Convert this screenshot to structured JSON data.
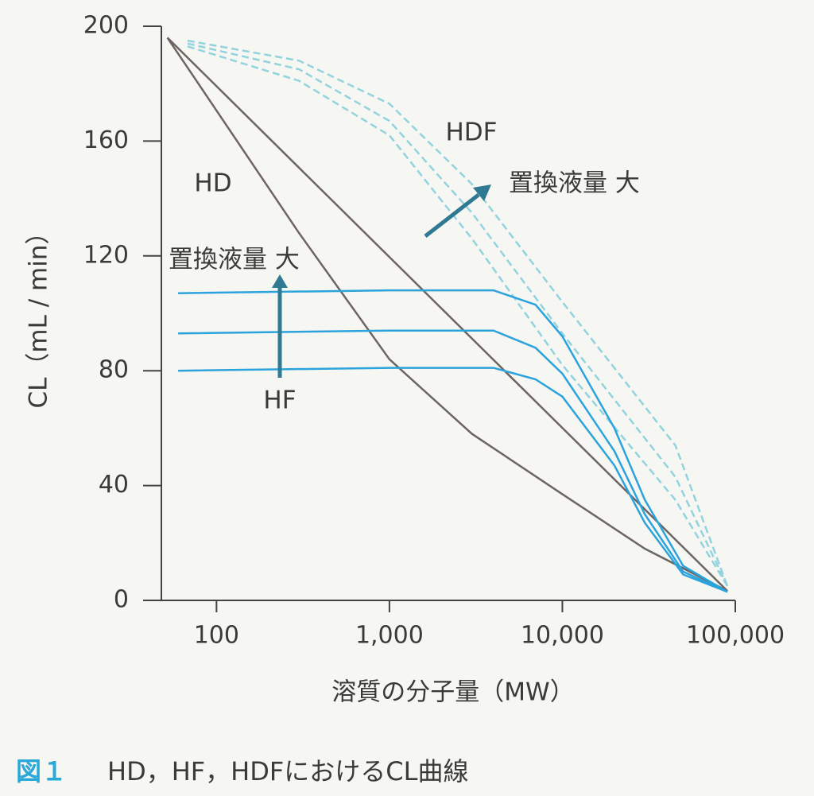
{
  "chart_data": {
    "type": "line",
    "x_scale": "log",
    "xlabel": "溶質の分子量（MW）",
    "ylabel": "CL（mL / min）",
    "xlim": [
      48,
      100000
    ],
    "ylim": [
      0,
      200
    ],
    "xticks": [
      100,
      {
        "value": 1000,
        "label": "1,000"
      },
      {
        "value": 10000,
        "label": "10,000"
      },
      {
        "value": 100000,
        "label": "100,000"
      }
    ],
    "yticks": [
      0,
      40,
      80,
      120,
      160,
      200
    ],
    "annotations": [
      "HD",
      "HDF",
      "置換液量 大",
      "置換液量 大",
      "HF"
    ],
    "caption": {
      "label": "図１",
      "text": "HD，HF，HDFにおけるCL曲線"
    },
    "series": [
      {
        "color": "#6d6562",
        "dash": false,
        "x": [
          52,
          90000
        ],
        "values": [
          196,
          3.3
        ]
      },
      {
        "color": "#6d6562",
        "dash": false,
        "x": [
          52,
          300,
          1000,
          3000,
          10000,
          30000,
          90000
        ],
        "values": [
          196,
          128,
          84,
          58,
          37,
          18,
          3.3
        ]
      },
      {
        "color": "#93d3dd",
        "dash": true,
        "x": [
          68,
          300,
          1000,
          3000,
          10000,
          45000,
          90000
        ],
        "values": [
          195,
          188,
          173,
          145,
          104,
          54,
          5
        ]
      },
      {
        "color": "#93d3dd",
        "dash": true,
        "x": [
          68,
          300,
          1000,
          3000,
          10000,
          45000,
          90000
        ],
        "values": [
          194,
          185,
          167,
          135,
          93,
          43,
          5
        ]
      },
      {
        "color": "#93d3dd",
        "dash": true,
        "x": [
          68,
          300,
          1000,
          3000,
          10000,
          45000,
          90000
        ],
        "values": [
          193,
          181,
          162,
          126,
          82,
          35,
          5
        ]
      },
      {
        "color": "#2ba3dc",
        "dash": false,
        "x": [
          60,
          1000,
          4000,
          7000,
          10000,
          20000,
          30000,
          50000,
          90000
        ],
        "values": [
          107,
          108,
          108,
          103,
          92,
          60,
          35,
          12,
          3
        ]
      },
      {
        "color": "#2ba3dc",
        "dash": false,
        "x": [
          60,
          1000,
          4000,
          7000,
          10000,
          20000,
          30000,
          50000,
          90000
        ],
        "values": [
          93,
          94,
          94,
          88,
          79,
          52,
          30,
          10,
          3
        ]
      },
      {
        "color": "#2ba3dc",
        "dash": false,
        "x": [
          60,
          1000,
          4000,
          7000,
          10000,
          20000,
          30000,
          50000,
          90000
        ],
        "values": [
          80,
          81,
          81,
          77,
          71,
          47,
          27,
          9,
          3
        ]
      }
    ]
  }
}
